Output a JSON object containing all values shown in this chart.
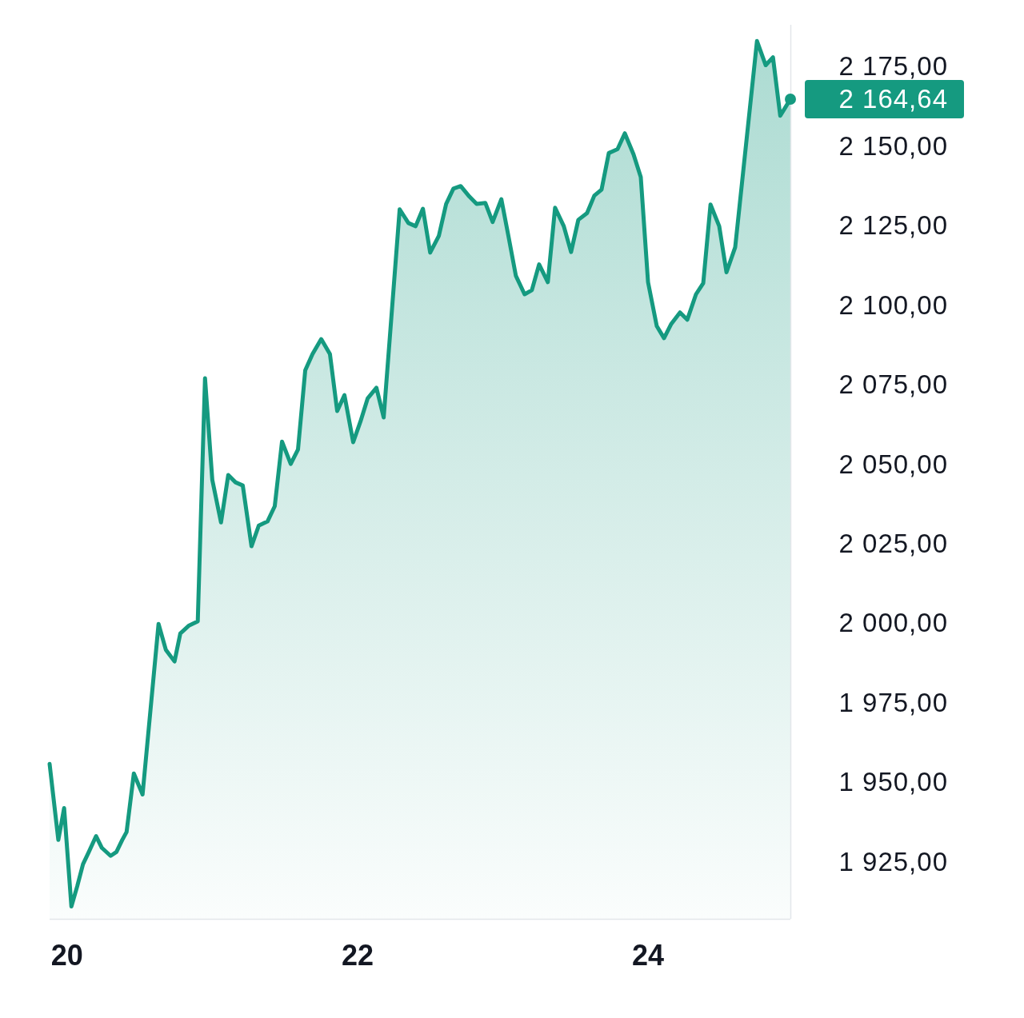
{
  "chart_data": {
    "type": "area",
    "color": "#159a80",
    "x": [
      19.88,
      19.94,
      19.98,
      20.03,
      20.07,
      20.11,
      20.15,
      20.2,
      20.24,
      20.3,
      20.34,
      20.38,
      20.41,
      20.46,
      20.52,
      20.63,
      20.68,
      20.74,
      20.78,
      20.84,
      20.9,
      20.95,
      21.0,
      21.06,
      21.11,
      21.16,
      21.21,
      21.27,
      21.32,
      21.38,
      21.43,
      21.48,
      21.54,
      21.59,
      21.64,
      21.69,
      21.75,
      21.81,
      21.86,
      21.91,
      21.97,
      22.02,
      22.07,
      22.13,
      22.18,
      22.29,
      22.35,
      22.4,
      22.45,
      22.5,
      22.56,
      22.61,
      22.66,
      22.71,
      22.77,
      22.82,
      22.88,
      22.93,
      22.99,
      23.04,
      23.09,
      23.15,
      23.2,
      23.25,
      23.31,
      23.36,
      23.42,
      23.47,
      23.52,
      23.58,
      23.63,
      23.68,
      23.73,
      23.79,
      23.84,
      23.9,
      23.95,
      24.0,
      24.06,
      24.11,
      24.16,
      24.22,
      24.27,
      24.33,
      24.38,
      24.43,
      24.49,
      24.54,
      24.6,
      24.75,
      24.81,
      24.86,
      24.91,
      24.95,
      24.98
    ],
    "values": [
      1955.7,
      1931.8,
      1941.8,
      1910.9,
      1917.2,
      1924.2,
      1928.0,
      1933.0,
      1929.3,
      1926.8,
      1928.0,
      1931.8,
      1934.3,
      1952.7,
      1946.1,
      1999.7,
      1991.6,
      1987.9,
      1996.7,
      1999.2,
      2000.5,
      2076.9,
      2045.0,
      2031.6,
      2046.5,
      2044.2,
      2043.2,
      2024.1,
      2030.6,
      2031.9,
      2036.7,
      2057.0,
      2050.0,
      2054.5,
      2079.4,
      2084.5,
      2089.2,
      2084.5,
      2066.6,
      2071.6,
      2056.8,
      2063.3,
      2070.6,
      2073.9,
      2064.6,
      2130.0,
      2125.7,
      2124.7,
      2130.2,
      2116.4,
      2121.7,
      2131.7,
      2136.5,
      2137.3,
      2134.0,
      2131.7,
      2132.0,
      2126.0,
      2133.2,
      2121.3,
      2109.1,
      2103.3,
      2104.6,
      2112.7,
      2107.1,
      2130.5,
      2124.7,
      2116.6,
      2126.7,
      2128.8,
      2134.3,
      2136.2,
      2147.7,
      2148.9,
      2153.9,
      2147.3,
      2140.1,
      2107.1,
      2093.3,
      2089.5,
      2094.0,
      2097.6,
      2095.3,
      2103.3,
      2106.8,
      2131.5,
      2124.7,
      2110.2,
      2118.1,
      2182.9,
      2175.3,
      2177.8,
      2159.4,
      2162.4,
      2164.64
    ],
    "value_labels": [
      null,
      null,
      null,
      null,
      null,
      null,
      null,
      null,
      null,
      null,
      null,
      null,
      null,
      null,
      null,
      null,
      null,
      null,
      null,
      null,
      null,
      null,
      null,
      null,
      null,
      null,
      null,
      null,
      null,
      null,
      null,
      null,
      null,
      null,
      null,
      null,
      null,
      null,
      null,
      null,
      null,
      null,
      null,
      null,
      null,
      null,
      null,
      null,
      null,
      null,
      null,
      null,
      null,
      null,
      null,
      null,
      null,
      null,
      null,
      null,
      null,
      null,
      null,
      null,
      null,
      null,
      null,
      null,
      null,
      null,
      null,
      null,
      null,
      null,
      null,
      null,
      null,
      null,
      null,
      null,
      null,
      null,
      null,
      null,
      null,
      null,
      null,
      null,
      null,
      null,
      null,
      null,
      null,
      null,
      "2 164,64"
    ],
    "xlim": [
      19.88,
      24.98
    ],
    "xticks": [
      20,
      22,
      24
    ],
    "ylim": [
      1907,
      2188
    ],
    "yticks": [
      {
        "value": 1925,
        "label": "1 925,00"
      },
      {
        "value": 1950,
        "label": "1 950,00"
      },
      {
        "value": 1975,
        "label": "1 975,00"
      },
      {
        "value": 2000,
        "label": "2 000,00"
      },
      {
        "value": 2025,
        "label": "2 025,00"
      },
      {
        "value": 2050,
        "label": "2 050,00"
      },
      {
        "value": 2075,
        "label": "2 075,00"
      },
      {
        "value": 2100,
        "label": "2 100,00"
      },
      {
        "value": 2125,
        "label": "2 125,00"
      },
      {
        "value": 2150,
        "label": "2 150,00"
      },
      {
        "value": 2175,
        "label": "2 175,00"
      }
    ],
    "grid": false
  }
}
